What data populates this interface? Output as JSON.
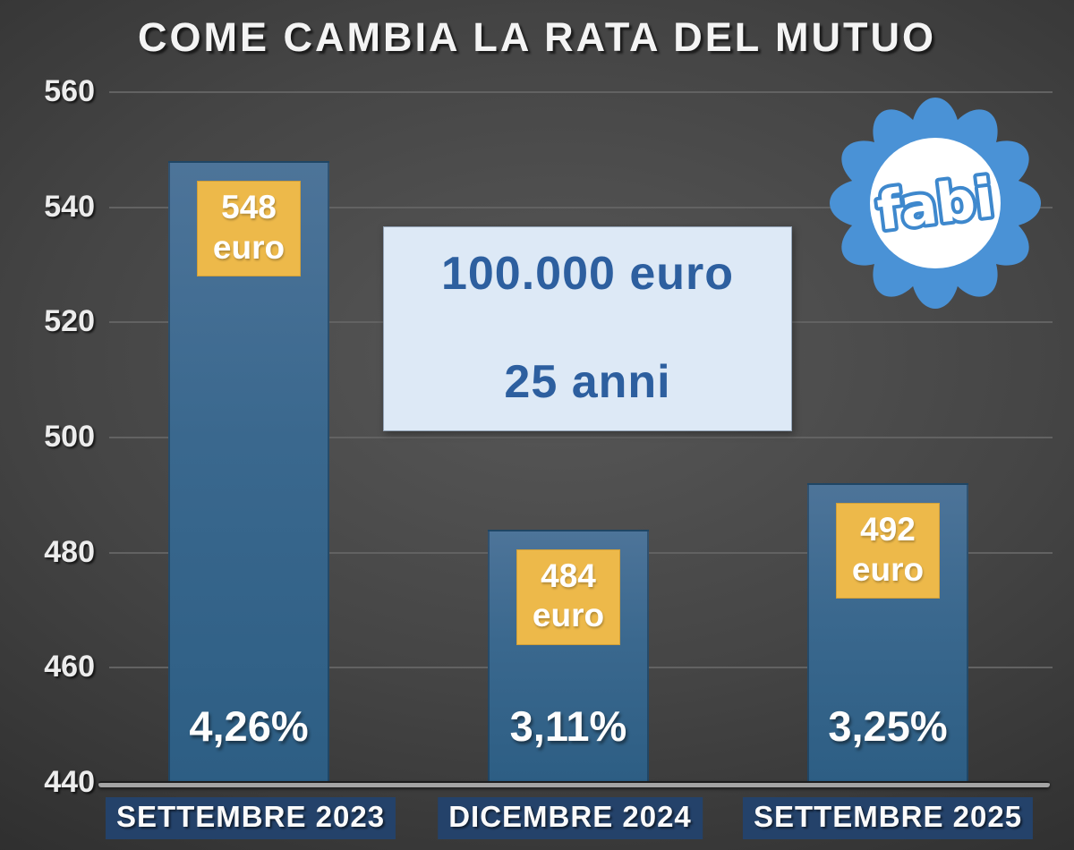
{
  "title": "COME CAMBIA LA RATA DEL MUTUO",
  "logo": {
    "text": "fabi"
  },
  "annotation_box": {
    "line1": "100.000 euro",
    "line2": "25 anni"
  },
  "colors": {
    "background_center": "#585858",
    "background_corner": "#1f1f1f",
    "bar_top": "#4d7499",
    "bar_bottom": "#2d5e84",
    "amount_badge": "#edb94a",
    "info_box_bg": "#dde9f6",
    "info_box_text": "#2d5f9f",
    "x_label_bg": "#24426a",
    "gridline": "#626262",
    "baseline": "#a4a4a4",
    "logo_blue": "#4a92d6",
    "text_white": "#ffffff"
  },
  "chart_data": {
    "type": "bar",
    "title": "COME CAMBIA LA RATA DEL MUTUO",
    "categories": [
      "SETTEMBRE 2023",
      "DICEMBRE 2024",
      "SETTEMBRE 2025"
    ],
    "values": [
      548,
      484,
      492
    ],
    "bars": [
      {
        "category": "SETTEMBRE 2023",
        "value": 548,
        "amount": "548",
        "unit": "euro",
        "rate": "4,26%"
      },
      {
        "category": "DICEMBRE 2024",
        "value": 484,
        "amount": "484",
        "unit": "euro",
        "rate": "3,11%"
      },
      {
        "category": "SETTEMBRE 2025",
        "value": 492,
        "amount": "492",
        "unit": "euro",
        "rate": "3,25%"
      }
    ],
    "xlabel": "",
    "ylabel": "",
    "ylim": [
      440,
      560
    ],
    "yticks": [
      440,
      460,
      480,
      500,
      520,
      540,
      560
    ],
    "grid": true,
    "legend": false,
    "annotations": [
      "100.000 euro",
      "25 anni"
    ]
  }
}
